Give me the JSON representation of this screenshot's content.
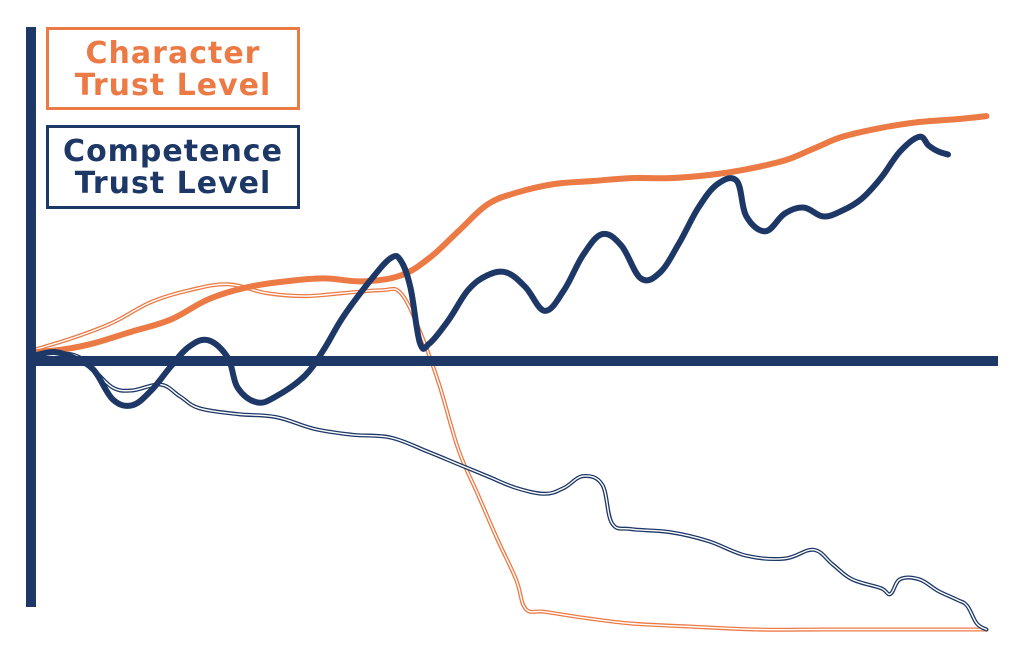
{
  "colors": {
    "character": "#ec7a45",
    "competence": "#1d3866",
    "axis": "#1d3866"
  },
  "legend": {
    "character": {
      "line1": "Character",
      "line2": "Trust Level"
    },
    "competence": {
      "line1": "Competence",
      "line2": "Trust Level"
    }
  },
  "chart_data": {
    "type": "line",
    "title": "",
    "xlabel": "",
    "ylabel": "",
    "xlim": [
      0,
      100
    ],
    "ylim": [
      -100,
      100
    ],
    "grid": false,
    "legend_position": "top-left",
    "series": [
      {
        "name": "Character Trust Level",
        "style": "thick",
        "color": "#ec7a45",
        "points": [
          [
            0,
            3
          ],
          [
            3,
            4
          ],
          [
            6,
            6
          ],
          [
            10,
            10
          ],
          [
            14,
            14
          ],
          [
            18,
            21
          ],
          [
            22,
            25
          ],
          [
            26,
            27
          ],
          [
            30,
            28
          ],
          [
            34,
            27
          ],
          [
            38,
            29
          ],
          [
            41,
            35
          ],
          [
            44,
            44
          ],
          [
            47,
            53
          ],
          [
            50,
            57
          ],
          [
            54,
            60
          ],
          [
            58,
            61
          ],
          [
            62,
            62
          ],
          [
            66,
            62
          ],
          [
            70,
            63
          ],
          [
            74,
            65
          ],
          [
            78,
            68
          ],
          [
            81,
            72
          ],
          [
            84,
            76
          ],
          [
            88,
            79
          ],
          [
            92,
            81
          ],
          [
            96,
            82
          ],
          [
            99,
            83
          ]
        ]
      },
      {
        "name": "Competence Trust Level",
        "style": "thick",
        "color": "#1d3866",
        "points": [
          [
            0,
            2
          ],
          [
            2,
            3
          ],
          [
            4,
            1
          ],
          [
            6,
            -3
          ],
          [
            8,
            -13
          ],
          [
            10,
            -15
          ],
          [
            12,
            -10
          ],
          [
            14,
            -2
          ],
          [
            16,
            5
          ],
          [
            18,
            7
          ],
          [
            20,
            1
          ],
          [
            21,
            -9
          ],
          [
            23,
            -14
          ],
          [
            25,
            -12
          ],
          [
            28,
            -5
          ],
          [
            30,
            4
          ],
          [
            32,
            15
          ],
          [
            35,
            28
          ],
          [
            37,
            35
          ],
          [
            38,
            34
          ],
          [
            39,
            25
          ],
          [
            40,
            6
          ],
          [
            41,
            6
          ],
          [
            43,
            14
          ],
          [
            45,
            24
          ],
          [
            47,
            29
          ],
          [
            49,
            30
          ],
          [
            51,
            25
          ],
          [
            53,
            17
          ],
          [
            55,
            24
          ],
          [
            57,
            36
          ],
          [
            59,
            43
          ],
          [
            61,
            39
          ],
          [
            63,
            28
          ],
          [
            65,
            30
          ],
          [
            67,
            40
          ],
          [
            69,
            52
          ],
          [
            71,
            60
          ],
          [
            73,
            61
          ],
          [
            74,
            49
          ],
          [
            76,
            44
          ],
          [
            78,
            50
          ],
          [
            80,
            52
          ],
          [
            82,
            49
          ],
          [
            84,
            51
          ],
          [
            86,
            55
          ],
          [
            88,
            62
          ],
          [
            90,
            71
          ],
          [
            92,
            76
          ],
          [
            93,
            73
          ],
          [
            94,
            71
          ],
          [
            95,
            70
          ]
        ]
      },
      {
        "name": "",
        "style": "thin",
        "color": "#ec7a45",
        "points": [
          [
            0,
            4
          ],
          [
            4,
            8
          ],
          [
            8,
            13
          ],
          [
            12,
            20
          ],
          [
            16,
            24
          ],
          [
            20,
            26
          ],
          [
            24,
            23
          ],
          [
            28,
            22
          ],
          [
            32,
            23
          ],
          [
            36,
            24
          ],
          [
            38,
            23
          ],
          [
            40,
            10
          ],
          [
            42,
            -8
          ],
          [
            44,
            -30
          ],
          [
            46,
            -45
          ],
          [
            48,
            -60
          ],
          [
            50,
            -74
          ],
          [
            51,
            -84
          ],
          [
            53,
            -85
          ],
          [
            57,
            -87
          ],
          [
            62,
            -89
          ],
          [
            68,
            -90
          ],
          [
            75,
            -91
          ],
          [
            82,
            -91
          ],
          [
            88,
            -91
          ],
          [
            95,
            -91
          ],
          [
            99,
            -91
          ]
        ]
      },
      {
        "name": "",
        "style": "thin",
        "color": "#1d3866",
        "points": [
          [
            0,
            3
          ],
          [
            4,
            2
          ],
          [
            6,
            -3
          ],
          [
            8,
            -9
          ],
          [
            10,
            -10
          ],
          [
            13,
            -8
          ],
          [
            15,
            -12
          ],
          [
            17,
            -16
          ],
          [
            21,
            -18
          ],
          [
            25,
            -19
          ],
          [
            29,
            -23
          ],
          [
            33,
            -25
          ],
          [
            37,
            -26
          ],
          [
            41,
            -31
          ],
          [
            44,
            -35
          ],
          [
            47,
            -39
          ],
          [
            50,
            -43
          ],
          [
            53,
            -45
          ],
          [
            55,
            -43
          ],
          [
            57,
            -39
          ],
          [
            59,
            -42
          ],
          [
            60,
            -55
          ],
          [
            62,
            -57
          ],
          [
            66,
            -58
          ],
          [
            70,
            -61
          ],
          [
            74,
            -66
          ],
          [
            78,
            -67
          ],
          [
            81,
            -64
          ],
          [
            83,
            -69
          ],
          [
            85,
            -74
          ],
          [
            88,
            -77
          ],
          [
            89,
            -79
          ],
          [
            90,
            -74
          ],
          [
            92,
            -74
          ],
          [
            94,
            -78
          ],
          [
            96,
            -81
          ],
          [
            97,
            -83
          ],
          [
            98,
            -89
          ],
          [
            99,
            -91
          ]
        ]
      }
    ]
  }
}
